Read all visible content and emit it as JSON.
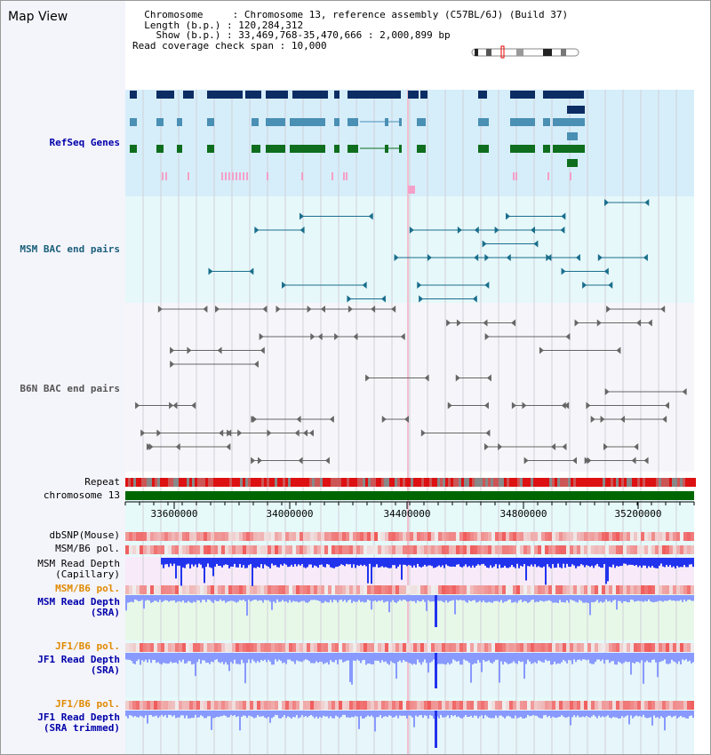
{
  "view": {
    "title": "Map View",
    "chromosome_key": "Chromosome",
    "chromosome_val": "Chromosome 13, reference assembly (C57BL/6J) (Build 37)",
    "length_key": "Length (b.p.)",
    "length_val": "120,284,312",
    "show_key": "Show (b.p.)",
    "show_val": "33,469,768-35,470,666 : 2,000,899 bp",
    "span_key": "Read coverage check span",
    "span_val": "10,000"
  },
  "tracks": {
    "refseq": "RefSeq Genes",
    "msm_bac": "MSM BAC end pairs",
    "b6n_bac": "B6N BAC end pairs",
    "repeat": "Repeat",
    "chromosome": "chromosome 13",
    "dbsnp": "dbSNP(Mouse)",
    "msm_b6_pol": "MSM/B6 pol.",
    "msm_depth_cap": "MSM Read Depth\n(Capillary)",
    "msm_b6_pol2": "MSM/B6 pol.",
    "msm_depth_sra": "MSM Read Depth\n(SRA)",
    "jf1_b6_pol": "JF1/B6 pol.",
    "jf1_depth_sra": "JF1 Read Depth\n(SRA)",
    "jf1_b6_pol2": "JF1/B6 pol.",
    "jf1_depth_trim": "JF1 Read Depth\n(SRA trimmed)"
  },
  "axis": {
    "ticks": [
      "33600000",
      "34000000",
      "34400000",
      "34800000",
      "35200000"
    ]
  },
  "colors": {
    "refseq_bg": "#d6eefa",
    "msm_bg": "#e6f8fa",
    "b6n_bg": "#f6f6fa",
    "depth_bg": "#e8f8e8",
    "gene_navy": "#0c2c64",
    "gene_teal": "#4a8fb4",
    "gene_green": "#0e6e1e",
    "bac_teal": "#1a6e8c",
    "bac_gray": "#666666",
    "repeat_red": "#dd1111",
    "chrom_green": "#006600",
    "depth_blue": "#2233ee",
    "depth_light": "#8899ff"
  }
}
